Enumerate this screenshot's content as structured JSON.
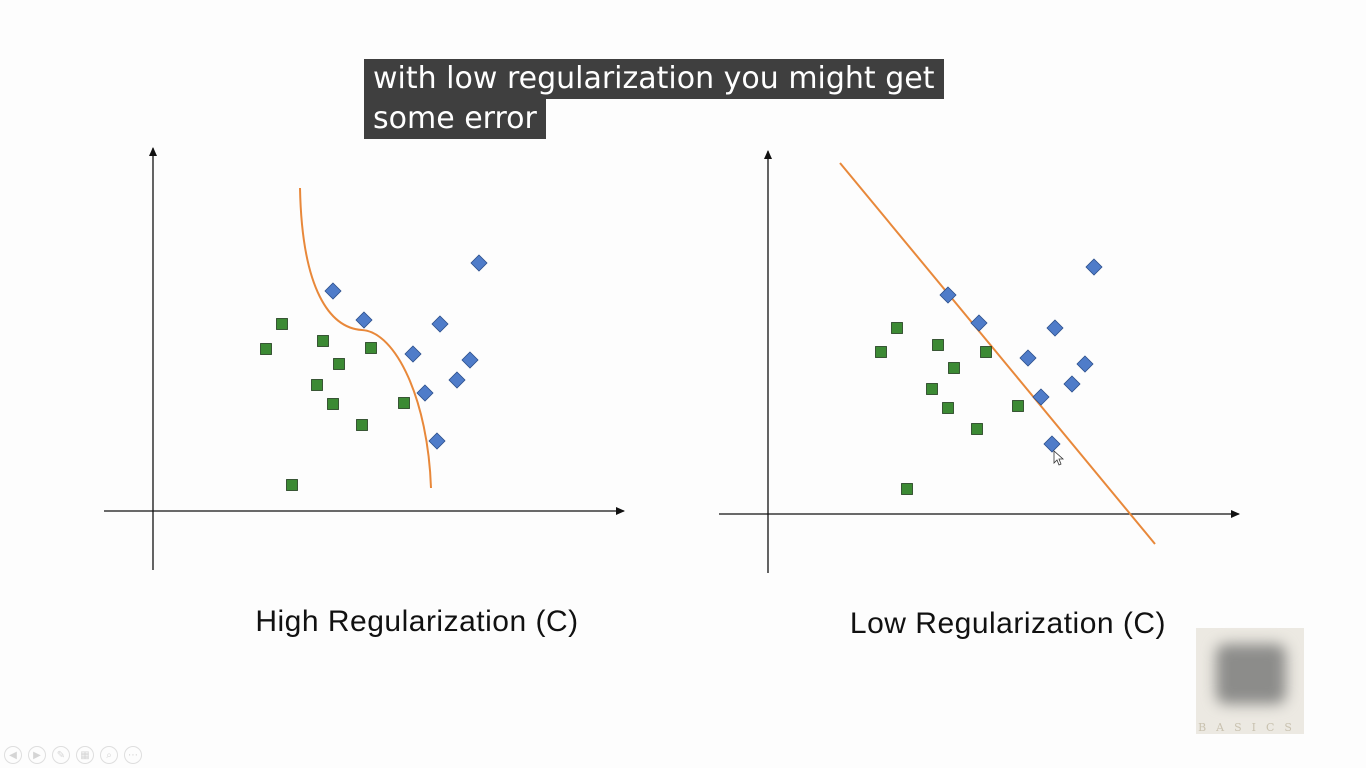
{
  "caption": {
    "line1": "with low regularization you might get",
    "line2": "some error"
  },
  "diagrams": [
    {
      "id": "high",
      "title": "High Regularization (C)",
      "boundary": "curve",
      "line_color": "#e8883a",
      "squares_color": "#3c8a34",
      "diamonds_color": "#4f7cc9"
    },
    {
      "id": "low",
      "title": "Low Regularization (C)",
      "boundary": "straight-line",
      "line_color": "#e8883a",
      "squares_color": "#3c8a34",
      "diamonds_color": "#4f7cc9"
    }
  ],
  "watermark": {
    "icon": "blurred-logo",
    "text": "BASICS"
  },
  "slide_controls": [
    {
      "icon": "previous-icon",
      "glyph": "◀"
    },
    {
      "icon": "next-icon",
      "glyph": "▶"
    },
    {
      "icon": "pen-icon",
      "glyph": "✎"
    },
    {
      "icon": "slides-icon",
      "glyph": "▦"
    },
    {
      "icon": "zoom-icon",
      "glyph": "⌕"
    },
    {
      "icon": "more-icon",
      "glyph": "⋯"
    }
  ]
}
